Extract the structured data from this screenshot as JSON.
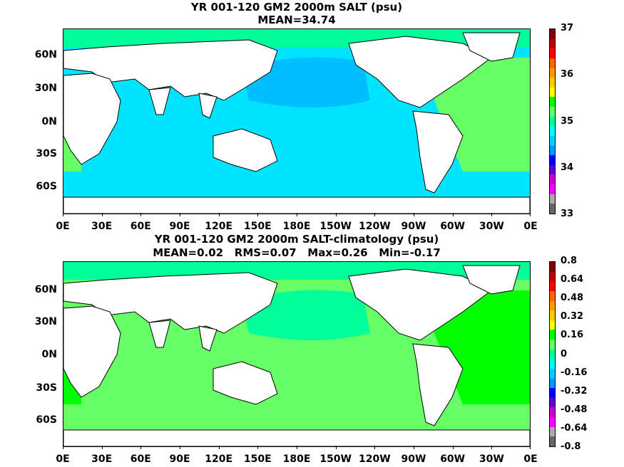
{
  "panels": [
    {
      "title": "YR 001-120 GM2 2000m SALT (psu)",
      "subtitle": "MEAN=34.74",
      "colorbar_labels": [
        "37",
        "36",
        "35",
        "34",
        "33"
      ],
      "colorbar_colors": [
        "#800000",
        "#c00000",
        "#ff0000",
        "#ff6600",
        "#ff9900",
        "#ffcc00",
        "#ffff00",
        "#00ff00",
        "#66ff66",
        "#00ff99",
        "#00ffff",
        "#00ccff",
        "#0099ff",
        "#0000ff",
        "#6600cc",
        "#cc00cc",
        "#ff00ff",
        "#aaaaaa",
        "#666666"
      ],
      "regions": {
        "atlantic": "#66ff66",
        "north_pacific": "#00bfff",
        "south_pacific": "#00e5ff",
        "indian": "#00e5ff",
        "arctic": "#00ff99"
      }
    },
    {
      "title": "YR 001-120 GM2 2000m SALT-climatology (psu)",
      "subtitle": "MEAN=0.02   RMS=0.07   Max=0.26   Min=-0.17",
      "colorbar_labels": [
        "0.8",
        "0.64",
        "0.48",
        "0.32",
        "0.16",
        "0",
        "-0.16",
        "-0.32",
        "-0.48",
        "-0.64",
        "-0.8"
      ],
      "colorbar_colors": [
        "#800000",
        "#c00000",
        "#ff0000",
        "#ff6600",
        "#ff9900",
        "#ffcc00",
        "#ffff00",
        "#00ff00",
        "#66ff66",
        "#00ff99",
        "#00ffff",
        "#00ccff",
        "#0099ff",
        "#0000ff",
        "#6600cc",
        "#cc00cc",
        "#ff00ff",
        "#aaaaaa",
        "#666666"
      ],
      "regions": {
        "atlantic": "#00ff00",
        "north_pacific": "#00ff99",
        "south_pacific": "#66ff66",
        "indian": "#66ff66",
        "arctic": "#00ff99"
      }
    }
  ],
  "lat_labels": [
    "60N",
    "30N",
    "0N",
    "30S",
    "60S"
  ],
  "lon_labels": [
    "0E",
    "30E",
    "60E",
    "90E",
    "120E",
    "150E",
    "180E",
    "150W",
    "120W",
    "90W",
    "60W",
    "30W",
    "0E"
  ]
}
